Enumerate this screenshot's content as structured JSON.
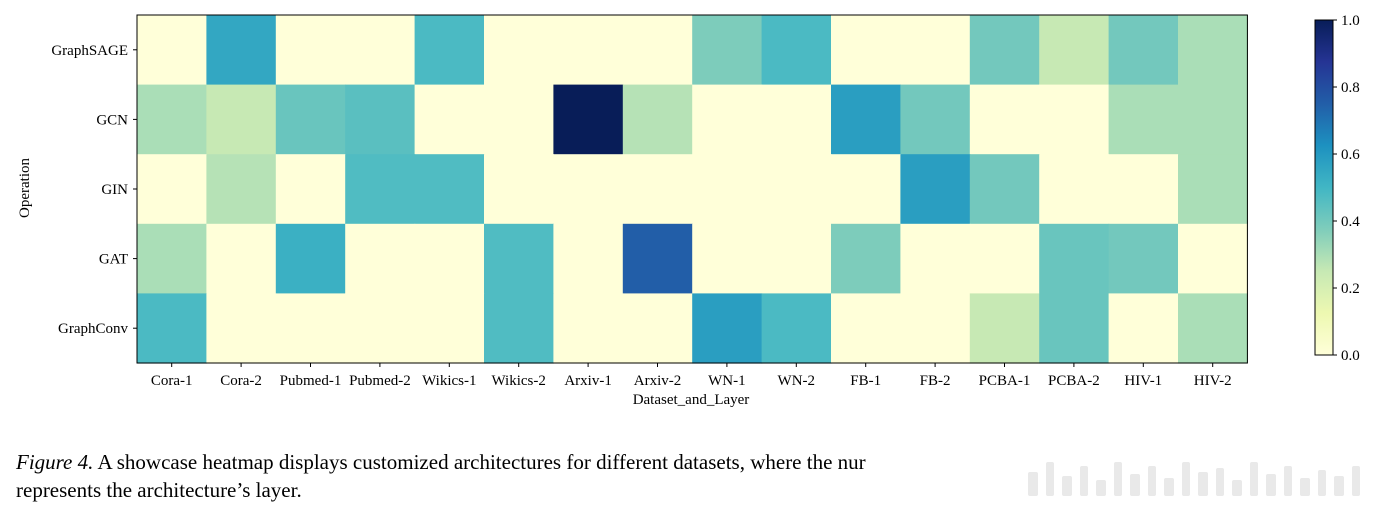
{
  "chart_data": {
    "type": "heatmap",
    "xlabel": "Dataset_and_Layer",
    "ylabel": "Operation",
    "x_categories": [
      "Cora-1",
      "Cora-2",
      "Pubmed-1",
      "Pubmed-2",
      "Wikics-1",
      "Wikics-2",
      "Arxiv-1",
      "Arxiv-2",
      "WN-1",
      "WN-2",
      "FB-1",
      "FB-2",
      "PCBA-1",
      "PCBA-2",
      "HIV-1",
      "HIV-2"
    ],
    "y_categories": [
      "GraphSAGE",
      "GCN",
      "GIN",
      "GAT",
      "GraphConv"
    ],
    "values": [
      [
        0.0,
        0.55,
        0.0,
        0.0,
        0.48,
        0.0,
        0.0,
        0.0,
        0.38,
        0.48,
        0.0,
        0.0,
        0.4,
        0.25,
        0.4,
        0.3
      ],
      [
        0.3,
        0.25,
        0.42,
        0.45,
        0.0,
        0.0,
        1.0,
        0.28,
        0.0,
        0.0,
        0.58,
        0.4,
        0.0,
        0.0,
        0.3,
        0.3
      ],
      [
        0.0,
        0.28,
        0.0,
        0.47,
        0.47,
        0.0,
        0.0,
        0.0,
        0.0,
        0.0,
        0.0,
        0.58,
        0.4,
        0.0,
        0.0,
        0.3
      ],
      [
        0.3,
        0.0,
        0.52,
        0.0,
        0.0,
        0.47,
        0.0,
        0.75,
        0.0,
        0.0,
        0.38,
        0.0,
        0.0,
        0.42,
        0.4,
        0.0
      ],
      [
        0.48,
        0.0,
        0.0,
        0.0,
        0.0,
        0.47,
        0.0,
        0.0,
        0.58,
        0.48,
        0.0,
        0.0,
        0.25,
        0.42,
        0.0,
        0.3
      ]
    ],
    "colormap": "YlGnBu",
    "vmin": 0.0,
    "vmax": 1.0,
    "colorbar_ticks": [
      "0.0",
      "0.2",
      "0.4",
      "0.6",
      "0.8",
      "1.0"
    ],
    "grid": false
  },
  "caption": {
    "label": "Figure 4.",
    "text": " A showcase heatmap displays customized architectures for different datasets, where the nur",
    "line2": "represents the architecture’s layer."
  }
}
